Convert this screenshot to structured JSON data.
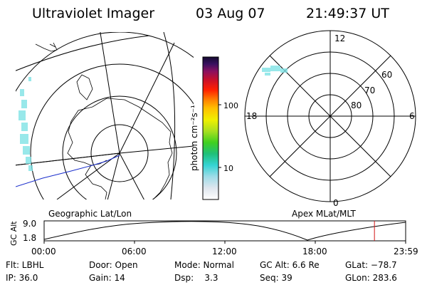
{
  "header": {
    "title": "Ultraviolet Imager",
    "date": "03 Aug 07",
    "time": "21:49:37 UT"
  },
  "colorbar": {
    "unit": "photon cm⁻²s⁻¹",
    "ticks": [
      "100",
      "10"
    ]
  },
  "polar": {
    "mlt_labels": {
      "top": "12",
      "left": "18",
      "right": "6",
      "bottom": "0"
    },
    "lat_labels": [
      "60",
      "70",
      "80"
    ]
  },
  "panel_labels": {
    "left": "Geographic Lat/Lon",
    "right": "Apex MLat/MLT"
  },
  "altitude_plot": {
    "axis_label": "GC Alt",
    "y_ticks": [
      "9.0",
      "1.8"
    ],
    "x_ticks": [
      "00:00",
      "06:00",
      "12:00",
      "18:00",
      "23:59"
    ],
    "current_time_fraction": 0.9137
  },
  "info": {
    "row1": [
      "Flt: LBHL",
      "Door: Open",
      "Mode: Normal",
      "GC Alt: 6.6 Re",
      "GLat: −78.7"
    ],
    "row2": [
      "IP: 36.0",
      "Gain: 14",
      "Dsp:    3.3",
      "Seq: 39",
      "GLon: 283.6"
    ]
  },
  "colors": {
    "line": "#000000",
    "orbit_track": "#1a2ecc",
    "aurora": "#7fe3e6",
    "time_marker": "#d41414"
  }
}
